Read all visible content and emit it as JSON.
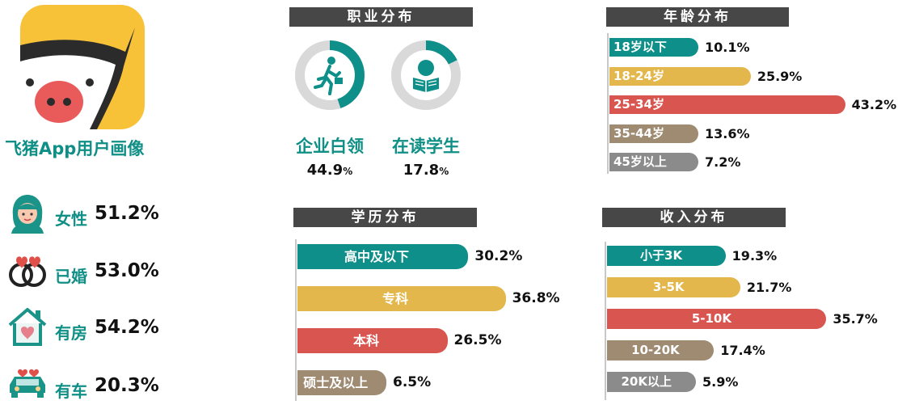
{
  "app": {
    "title": "飞猪App用户画像",
    "logo_icon": "pig-logo-icon",
    "brand_color": "#f8c238"
  },
  "colors": {
    "teal": "#0e8f89",
    "yellow": "#e3b74b",
    "red": "#d95550",
    "brown": "#9f8a72",
    "gray": "#8b8b8b",
    "header": "#474747"
  },
  "stats": [
    {
      "icon": "woman-icon",
      "label": "女性",
      "value": "51.2%"
    },
    {
      "icon": "rings-icon",
      "label": "已婚",
      "value": "53.0%"
    },
    {
      "icon": "house-heart-icon",
      "label": "有房",
      "value": "54.2%"
    },
    {
      "icon": "car-icon",
      "label": "有车",
      "value": "20.3%"
    }
  ],
  "occupation": {
    "header": "职业分布",
    "items": [
      {
        "label": "企业白领",
        "value": "44.9",
        "unit": "%",
        "icon": "office-worker-icon"
      },
      {
        "label": "在读学生",
        "value": "17.8",
        "unit": "%",
        "icon": "student-reading-icon"
      }
    ]
  },
  "age": {
    "header": "年龄分布"
  },
  "education": {
    "header": "学历分布"
  },
  "income": {
    "header": "收入分布"
  },
  "chart_data": [
    {
      "type": "pie",
      "title": "职业分布",
      "categories": [
        "企业白领"
      ],
      "values": [
        44.9
      ]
    },
    {
      "type": "pie",
      "title": "职业分布",
      "categories": [
        "在读学生"
      ],
      "values": [
        17.8
      ]
    },
    {
      "type": "bar",
      "title": "年龄分布",
      "categories": [
        "18岁以下",
        "18-24岁",
        "25-34岁",
        "35-44岁",
        "45岁以上"
      ],
      "values": [
        10.1,
        25.9,
        43.2,
        13.6,
        7.2
      ],
      "value_labels": [
        "10.1%",
        "25.9%",
        "43.2%",
        "13.6%",
        "7.2%"
      ]
    },
    {
      "type": "bar",
      "title": "学历分布",
      "categories": [
        "高中及以下",
        "专科",
        "本科",
        "硕士及以上"
      ],
      "values": [
        30.2,
        36.8,
        26.5,
        6.5
      ],
      "value_labels": [
        "30.2%",
        "36.8%",
        "26.5%",
        "6.5%"
      ]
    },
    {
      "type": "bar",
      "title": "收入分布",
      "categories": [
        "小于3K",
        "3-5K",
        "5-10K",
        "10-20K",
        "20K以上"
      ],
      "values": [
        19.3,
        21.7,
        35.7,
        17.4,
        5.9
      ],
      "value_labels": [
        "19.3%",
        "21.7%",
        "35.7%",
        "17.4%",
        "5.9%"
      ]
    }
  ]
}
